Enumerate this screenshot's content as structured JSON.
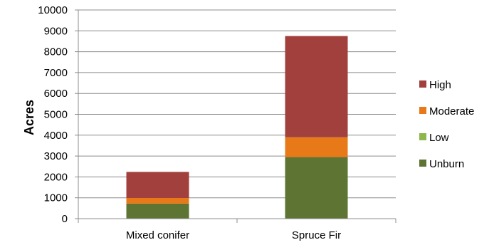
{
  "chart_data": {
    "type": "bar",
    "stacked": true,
    "categories": [
      "Mixed conifer",
      "Spruce Fir"
    ],
    "series": [
      {
        "name": "Unburn",
        "values": [
          720,
          2950
        ],
        "color": "#5e7432"
      },
      {
        "name": "Low",
        "values": [
          0,
          0
        ],
        "color": "#8db74a"
      },
      {
        "name": "Moderate",
        "values": [
          270,
          950
        ],
        "color": "#e87918"
      },
      {
        "name": "High",
        "values": [
          1250,
          4850
        ],
        "color": "#a1403d"
      }
    ],
    "ylabel": "Acres",
    "xlabel": "",
    "ylim": [
      0,
      10000
    ],
    "yticks": [
      "0",
      "1000",
      "2000",
      "3000",
      "4000",
      "5000",
      "6000",
      "7000",
      "8000",
      "9000",
      "10000"
    ],
    "grid": true,
    "legend": {
      "position": "right",
      "order": [
        "High",
        "Moderate",
        "Low",
        "Unburn"
      ]
    }
  }
}
